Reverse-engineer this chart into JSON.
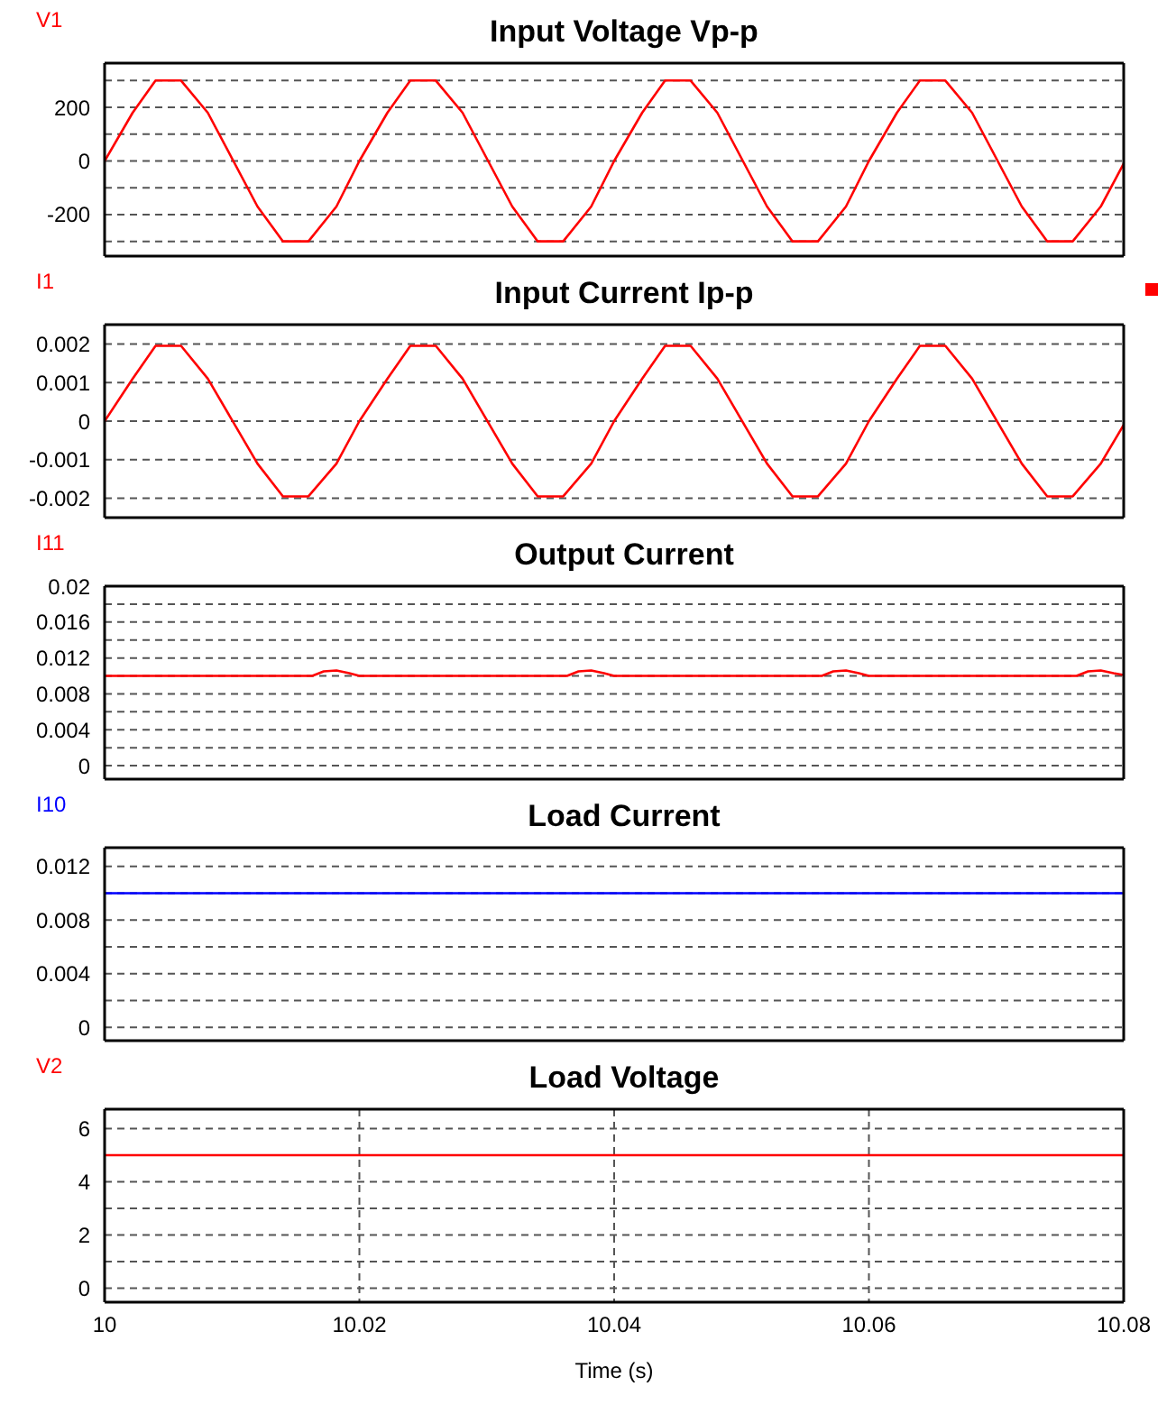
{
  "chart_data": [
    {
      "type": "line",
      "title": "Input Voltage Vp-p",
      "legend": "top left",
      "grid": true,
      "tick_labels": "y",
      "xlim": [
        10,
        10.08
      ],
      "xticks": [
        10,
        10.02,
        10.04,
        10.06,
        10.08
      ],
      "ylim": [
        -355,
        365
      ],
      "yticks": [
        {
          "value": -300,
          "label": null
        },
        -200,
        {
          "value": -100,
          "label": null
        },
        0,
        {
          "value": 100,
          "label": null
        },
        200,
        {
          "value": 300,
          "label": null
        }
      ],
      "series": [
        {
          "name": "V1",
          "color": "#ff0000",
          "x": [
            10,
            10.0022,
            10.004,
            10.006,
            10.0081,
            10.012,
            10.014,
            10.016,
            10.0182,
            10.02,
            10.0222,
            10.024,
            10.026,
            10.0281,
            10.032,
            10.034,
            10.036,
            10.0382,
            10.04,
            10.0422,
            10.044,
            10.046,
            10.0481,
            10.052,
            10.054,
            10.056,
            10.0582,
            10.06,
            10.0622,
            10.064,
            10.066,
            10.0681,
            10.072,
            10.074,
            10.076,
            10.0782,
            10.08
          ],
          "values": [
            0,
            180,
            300,
            300,
            180,
            -170,
            -300,
            -300,
            -170,
            0,
            180,
            300,
            300,
            180,
            -170,
            -300,
            -300,
            -170,
            0,
            180,
            300,
            300,
            180,
            -170,
            -300,
            -300,
            -170,
            0,
            180,
            300,
            300,
            180,
            -170,
            -300,
            -300,
            -170,
            -10
          ]
        }
      ]
    },
    {
      "type": "line",
      "title": "Input Current Ip-p",
      "legend": "top left",
      "grid": true,
      "tick_labels": "y",
      "xlim": [
        10,
        10.08
      ],
      "xticks": [
        10,
        10.02,
        10.04,
        10.06,
        10.08
      ],
      "ylim": [
        -0.0025,
        0.0025
      ],
      "yticks": [
        -0.002,
        -0.001,
        0,
        0.001,
        0.002
      ],
      "series": [
        {
          "name": "I1",
          "color": "#ff0000",
          "x": [
            10,
            10.0022,
            10.004,
            10.006,
            10.0081,
            10.012,
            10.014,
            10.016,
            10.0182,
            10.02,
            10.0222,
            10.024,
            10.026,
            10.0281,
            10.032,
            10.034,
            10.036,
            10.0382,
            10.04,
            10.0422,
            10.044,
            10.046,
            10.0481,
            10.052,
            10.054,
            10.056,
            10.0582,
            10.06,
            10.0622,
            10.064,
            10.066,
            10.0681,
            10.072,
            10.074,
            10.076,
            10.0782,
            10.08
          ],
          "values": [
            0,
            0.0011,
            0.00195,
            0.00195,
            0.0011,
            -0.0011,
            -0.00195,
            -0.00195,
            -0.0011,
            0,
            0.0011,
            0.00195,
            0.00195,
            0.0011,
            -0.0011,
            -0.00195,
            -0.00195,
            -0.0011,
            0,
            0.0011,
            0.00195,
            0.00195,
            0.0011,
            -0.0011,
            -0.00195,
            -0.00195,
            -0.0011,
            0,
            0.0011,
            0.00195,
            0.00195,
            0.0011,
            -0.0011,
            -0.00195,
            -0.00195,
            -0.0011,
            -0.0001
          ]
        }
      ]
    },
    {
      "type": "line",
      "title": "Output Current",
      "legend": "top left",
      "grid": true,
      "tick_labels": "y",
      "xlim": [
        10,
        10.08
      ],
      "xticks": [
        10,
        10.02,
        10.04,
        10.06,
        10.08
      ],
      "ylim": [
        -0.0015,
        0.02
      ],
      "yticks": [
        0,
        {
          "value": 0.002,
          "label": null
        },
        0.004,
        {
          "value": 0.006,
          "label": null
        },
        0.008,
        {
          "value": 0.01,
          "label": null
        },
        0.012,
        {
          "value": 0.014,
          "label": null
        },
        0.016,
        {
          "value": 0.018,
          "label": null
        },
        0.02
      ],
      "series": [
        {
          "name": "I11",
          "color": "#ff0000",
          "x": [
            10,
            10.0163,
            10.0172,
            10.0182,
            10.0192,
            10.02,
            10.0363,
            10.0372,
            10.0382,
            10.0392,
            10.04,
            10.0563,
            10.0572,
            10.0582,
            10.0592,
            10.06,
            10.0763,
            10.0772,
            10.0782,
            10.0792,
            10.08
          ],
          "values": [
            0.01,
            0.01,
            0.0105,
            0.0106,
            0.0103,
            0.01,
            0.01,
            0.0105,
            0.0106,
            0.0103,
            0.01,
            0.01,
            0.0105,
            0.0106,
            0.0103,
            0.01,
            0.01,
            0.0105,
            0.0106,
            0.0103,
            0.0101
          ]
        }
      ]
    },
    {
      "type": "line",
      "title": "Load Current",
      "legend": "top left",
      "grid": true,
      "tick_labels": "y",
      "xlim": [
        10,
        10.08
      ],
      "xticks": [
        10,
        10.02,
        10.04,
        10.06,
        10.08
      ],
      "ylim": [
        -0.001,
        0.0134
      ],
      "yticks": [
        0,
        {
          "value": 0.002,
          "label": null
        },
        0.004,
        {
          "value": 0.006,
          "label": null
        },
        0.008,
        {
          "value": 0.01,
          "label": null
        },
        0.012
      ],
      "series": [
        {
          "name": "I10",
          "color": "#0000ff",
          "x": [
            10,
            10.08
          ],
          "values": [
            0.01,
            0.01
          ]
        }
      ]
    },
    {
      "type": "line",
      "title": "Load Voltage",
      "xlabel": "Time (s)",
      "legend": "top left",
      "grid": true,
      "xlim": [
        10,
        10.08
      ],
      "xticks": [
        10,
        10.02,
        10.04,
        10.06,
        10.08
      ],
      "ylim": [
        -0.53,
        6.73
      ],
      "yticks": [
        0,
        {
          "value": 1,
          "label": null
        },
        2,
        {
          "value": 3,
          "label": null
        },
        4,
        {
          "value": 5,
          "label": null
        },
        6
      ],
      "series": [
        {
          "name": "V2",
          "color": "#ff0000",
          "x": [
            10,
            10.08
          ],
          "values": [
            5,
            5
          ]
        }
      ]
    }
  ]
}
